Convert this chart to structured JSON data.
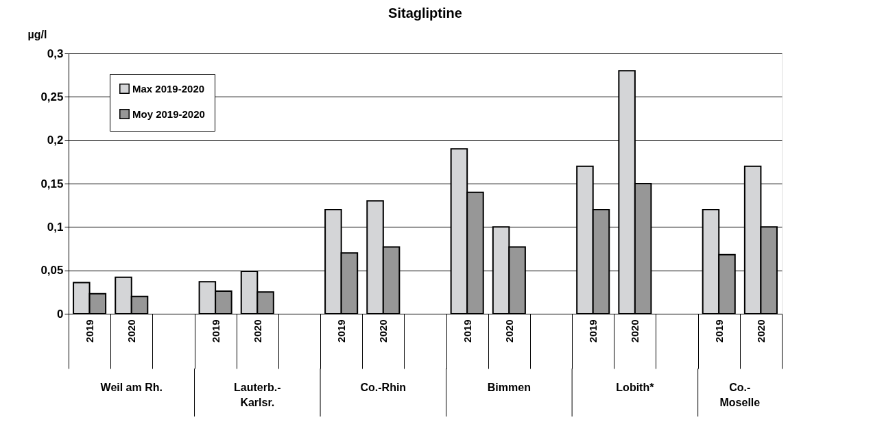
{
  "chart_data": {
    "type": "bar",
    "title": "Sitagliptine",
    "ylabel": "µg/l",
    "categories": [
      "2019",
      "2020",
      null,
      "2019",
      "2020",
      null,
      "2019",
      "2020",
      null,
      "2019",
      "2020",
      null,
      "2019",
      "2020",
      null,
      "2019",
      "2020"
    ],
    "series": [
      {
        "name": "Max 2019-2020",
        "color": "#d4d5d7",
        "values": [
          0.036,
          0.042,
          null,
          0.037,
          0.049,
          null,
          0.12,
          0.13,
          null,
          0.19,
          0.1,
          null,
          0.17,
          0.28,
          null,
          0.12,
          0.17
        ]
      },
      {
        "name": "Moy 2019-2020",
        "color": "#979797",
        "values": [
          0.023,
          0.02,
          null,
          0.026,
          0.025,
          null,
          0.07,
          0.077,
          null,
          0.14,
          0.077,
          null,
          0.12,
          0.15,
          null,
          0.068,
          0.1
        ]
      }
    ],
    "annotations": [
      "Weil am Rh.",
      "Lauterb.-Karlsr.",
      "Co.-Rhin",
      "Bimmen",
      "Lobith*",
      "Co.-Moselle"
    ],
    "ylim": [
      0,
      0.3
    ],
    "yticks": [
      0,
      {
        "value": 0.05,
        "label": "0,05"
      },
      {
        "value": 0.1,
        "label": "0,1"
      },
      {
        "value": 0.15,
        "label": "0,15"
      },
      {
        "value": 0.2,
        "label": "0,2"
      },
      {
        "value": 0.25,
        "label": "0,25"
      },
      {
        "value": 0.3,
        "label": "0,3"
      }
    ],
    "grid": "y",
    "legend": "top left"
  }
}
